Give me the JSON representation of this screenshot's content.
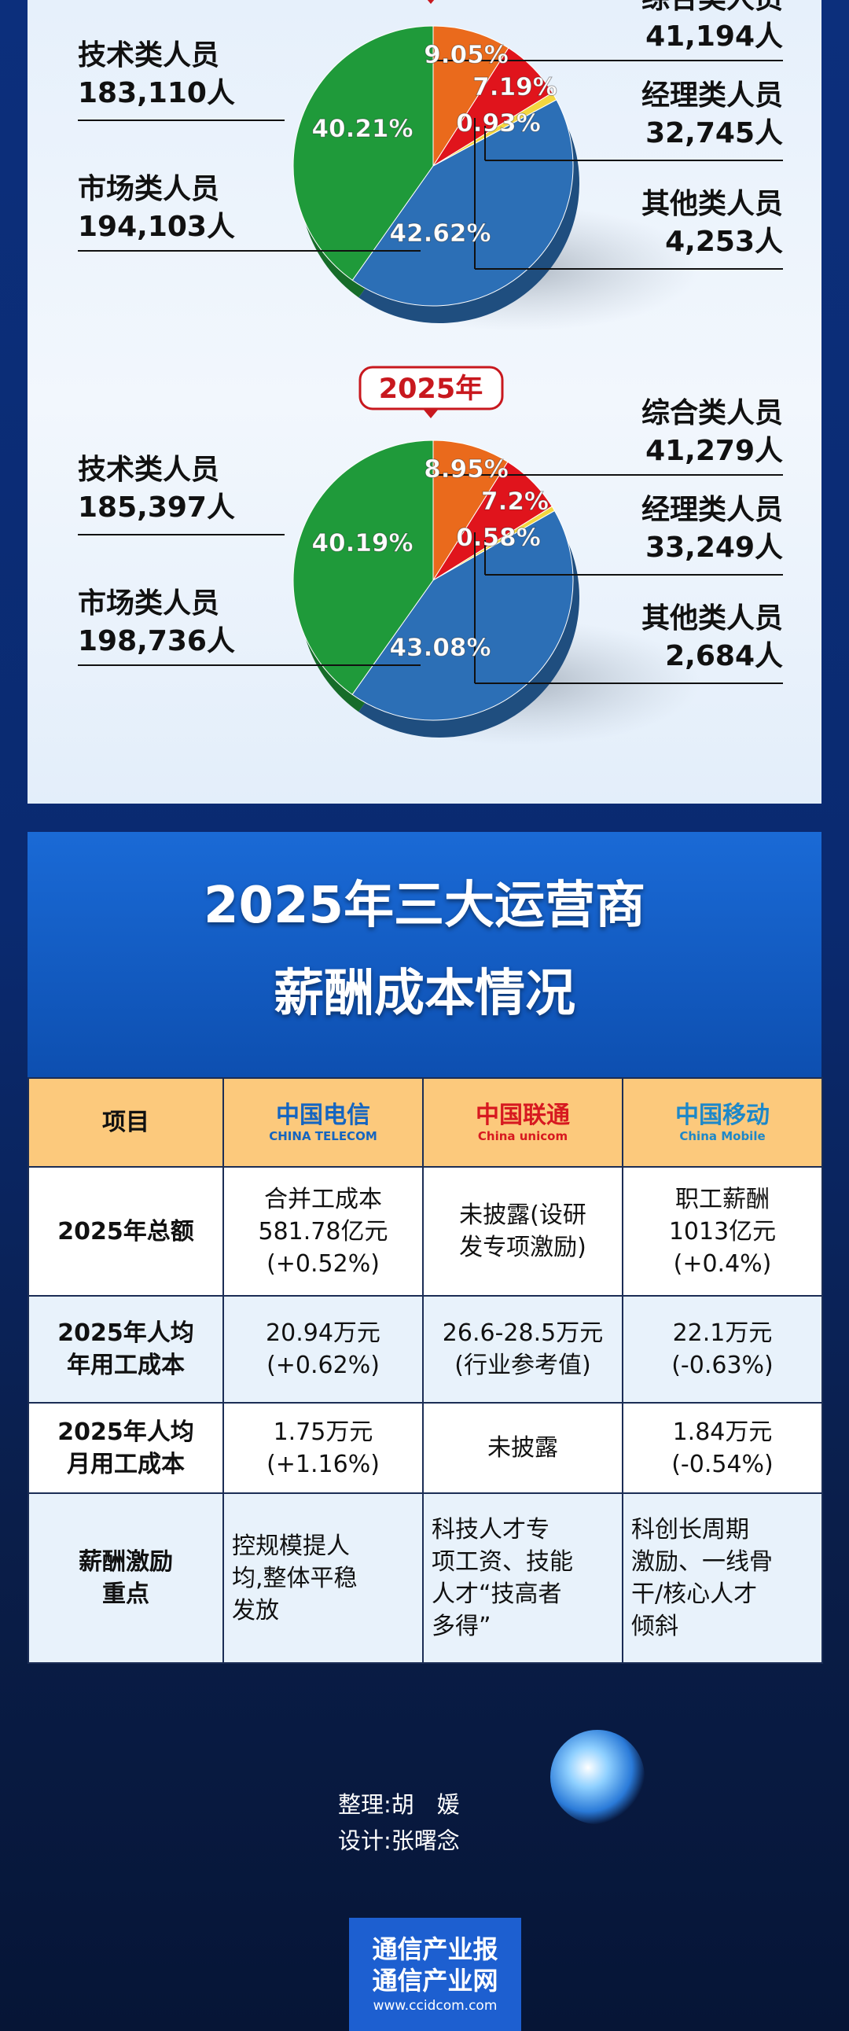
{
  "chart_data": [
    {
      "type": "pie",
      "categories": [
        "综合类人员",
        "经理类人员",
        "其他类人员",
        "市场类人员",
        "技术类人员"
      ],
      "count_labels": [
        "41,194人",
        "32,745人",
        "4,253人",
        "194,103人",
        "183,110人"
      ],
      "values": [
        9.05,
        7.19,
        0.93,
        42.62,
        40.21
      ],
      "value_labels": [
        "9.05%",
        "7.19%",
        "0.93%",
        "42.62%",
        "40.21%"
      ],
      "colors": [
        "#ea6a1c",
        "#e0141c",
        "#f3d640",
        "#2c6fb6",
        "#1f9a3a"
      ]
    },
    {
      "type": "pie",
      "title": "2025年",
      "categories": [
        "综合类人员",
        "经理类人员",
        "其他类人员",
        "市场类人员",
        "技术类人员"
      ],
      "count_labels": [
        "41,279人",
        "33,249人",
        "2,684人",
        "198,736人",
        "185,397人"
      ],
      "values": [
        8.95,
        7.2,
        0.58,
        43.08,
        40.19
      ],
      "value_labels": [
        "8.95%",
        "7.2%",
        "0.58%",
        "43.08%",
        "40.19%"
      ],
      "colors": [
        "#ea6a1c",
        "#e0141c",
        "#f3d640",
        "#2c6fb6",
        "#1f9a3a"
      ]
    }
  ],
  "table": {
    "title": [
      "2025年三大运营商",
      "薪酬成本情况"
    ],
    "header": [
      "项目",
      {
        "cn": "中国电信",
        "en": "CHINA TELECOM"
      },
      {
        "cn": "中国联通",
        "en": "China unicom"
      },
      {
        "cn": "中国移动",
        "en": "China Mobile"
      }
    ],
    "rows": [
      [
        "2025年总额",
        "合并工成本\n581.78亿元\n(+0.52%)",
        "未披露(设研\n发专项激励)",
        "职工薪酬\n1013亿元\n(+0.4%)"
      ],
      [
        "2025年人均\n年用工成本",
        "20.94万元\n(+0.62%)",
        "26.6-28.5万元\n(行业参考值)",
        "22.1万元\n(-0.63%)"
      ],
      [
        "2025年人均\n月用工成本",
        "1.75万元\n(+1.16%)",
        "未披露",
        "1.84万元\n(-0.54%)"
      ],
      [
        "薪酬激励\n重点",
        "控规模提人\n均,整体平稳\n发放",
        "科技人才专\n项工资、技能\n人才“技高者\n多得”",
        "科创长周期\n激励、一线骨\n干/核心人才\n倾斜"
      ]
    ]
  },
  "credits": [
    "整理:胡　媛",
    "设计:张曙念"
  ],
  "footer": {
    "lines": [
      "通信产业报",
      "通信产业网"
    ],
    "url": "www.ccidcom.com"
  }
}
